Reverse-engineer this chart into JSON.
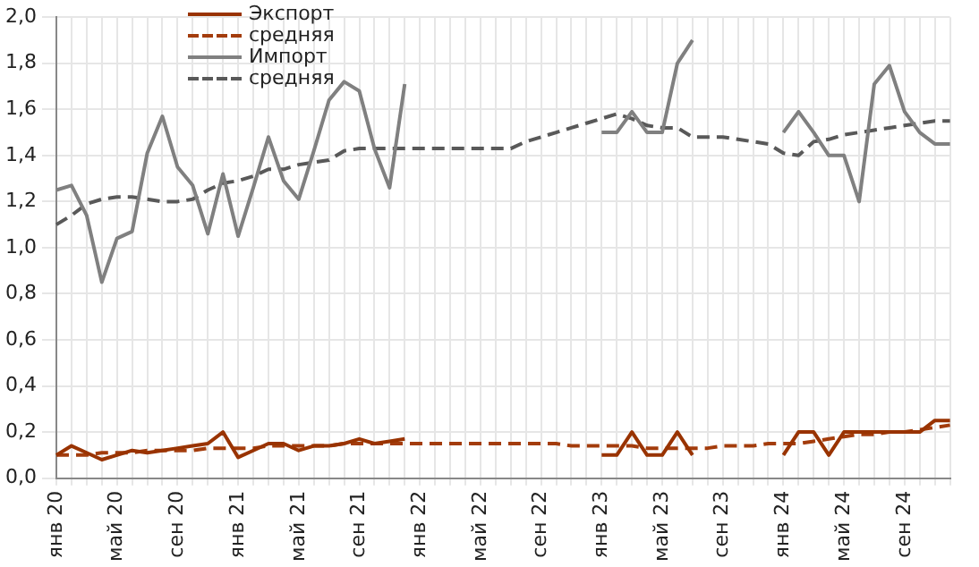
{
  "chart_data": {
    "type": "line",
    "categories": [
      "янв 20",
      null,
      null,
      null,
      "май 20",
      null,
      null,
      null,
      "сен 20",
      null,
      null,
      null,
      "янв 21",
      null,
      null,
      null,
      "май 21",
      null,
      null,
      null,
      "сен 21",
      null,
      null,
      null,
      "янв 22",
      null,
      null,
      null,
      "май 22",
      null,
      null,
      null,
      "сен 22",
      null,
      null,
      null,
      "янв 23",
      null,
      null,
      null,
      "май 23",
      null,
      null,
      null,
      "сен 23",
      null,
      null,
      null,
      "янв 24",
      null,
      null,
      null,
      "май 24",
      null,
      null,
      null,
      "сен 24",
      null,
      null,
      null
    ],
    "series": [
      {
        "name": "Экспорт",
        "color": "#993300",
        "line_style": "solid",
        "values": [
          0.1,
          0.14,
          0.11,
          0.08,
          0.1,
          0.12,
          0.11,
          0.12,
          0.13,
          0.14,
          0.15,
          0.2,
          0.09,
          0.12,
          0.15,
          0.15,
          0.12,
          0.14,
          0.14,
          0.15,
          0.17,
          0.15,
          0.16,
          0.17,
          null,
          null,
          null,
          null,
          null,
          null,
          null,
          null,
          null,
          null,
          null,
          null,
          0.1,
          0.1,
          0.2,
          0.1,
          0.1,
          0.2,
          0.1,
          null,
          null,
          null,
          null,
          null,
          0.1,
          0.2,
          0.2,
          0.1,
          0.2,
          0.2,
          0.2,
          0.2,
          0.2,
          0.2,
          0.25,
          0.25
        ]
      },
      {
        "name": "средняя",
        "color": "#a33c0c",
        "line_style": "dashed",
        "values": [
          0.1,
          0.1,
          0.1,
          0.11,
          0.11,
          0.11,
          0.12,
          0.12,
          0.12,
          0.12,
          0.13,
          0.13,
          0.13,
          0.13,
          0.14,
          0.14,
          0.14,
          0.14,
          0.14,
          0.15,
          0.15,
          0.15,
          0.15,
          0.15,
          0.15,
          0.15,
          0.15,
          0.15,
          0.15,
          0.15,
          0.15,
          0.15,
          0.15,
          0.15,
          0.14,
          0.14,
          0.14,
          0.14,
          0.14,
          0.13,
          0.13,
          0.13,
          0.13,
          0.13,
          0.14,
          0.14,
          0.14,
          0.15,
          0.15,
          0.15,
          0.16,
          0.17,
          0.18,
          0.19,
          0.19,
          0.2,
          0.2,
          0.21,
          0.22,
          0.23
        ]
      },
      {
        "name": "Импорт",
        "color": "#808080",
        "line_style": "solid",
        "values": [
          1.25,
          1.27,
          1.14,
          0.85,
          1.04,
          1.07,
          1.41,
          1.57,
          1.35,
          1.27,
          1.06,
          1.32,
          1.05,
          1.26,
          1.48,
          1.29,
          1.21,
          1.42,
          1.64,
          1.72,
          1.68,
          1.43,
          1.26,
          1.71,
          null,
          null,
          null,
          null,
          null,
          null,
          null,
          null,
          null,
          null,
          null,
          null,
          1.5,
          1.5,
          1.59,
          1.5,
          1.5,
          1.8,
          1.9,
          null,
          null,
          null,
          null,
          null,
          1.5,
          1.59,
          1.5,
          1.4,
          1.4,
          1.2,
          1.71,
          1.79,
          1.59,
          1.5,
          1.45,
          1.45
        ]
      },
      {
        "name": "средняя",
        "color": "#595959",
        "line_style": "dashed",
        "values": [
          1.1,
          1.14,
          1.19,
          1.21,
          1.22,
          1.22,
          1.21,
          1.2,
          1.2,
          1.21,
          1.25,
          1.28,
          1.29,
          1.31,
          1.34,
          1.34,
          1.36,
          1.37,
          1.38,
          1.42,
          1.43,
          1.43,
          1.43,
          1.43,
          1.43,
          1.43,
          1.43,
          1.43,
          1.43,
          1.43,
          1.43,
          1.46,
          1.48,
          1.5,
          1.52,
          1.54,
          1.56,
          1.58,
          1.56,
          1.53,
          1.52,
          1.52,
          1.48,
          1.48,
          1.48,
          1.47,
          1.46,
          1.45,
          1.41,
          1.4,
          1.46,
          1.47,
          1.49,
          1.5,
          1.51,
          1.52,
          1.53,
          1.54,
          1.55,
          1.55
        ]
      }
    ],
    "ylim": [
      0,
      2
    ],
    "yticks": [
      {
        "value": 0,
        "label": "0,0"
      },
      {
        "value": 0.2,
        "label": "0,2"
      },
      {
        "value": 0.4,
        "label": "0,4"
      },
      {
        "value": 0.6,
        "label": "0,6"
      },
      {
        "value": 0.8,
        "label": "0,8"
      },
      {
        "value": 1,
        "label": "1,0"
      },
      {
        "value": 1.2,
        "label": "1,2"
      },
      {
        "value": 1.4,
        "label": "1,4"
      },
      {
        "value": 1.6,
        "label": "1,6"
      },
      {
        "value": 1.8,
        "label": "1,8"
      },
      {
        "value": 2,
        "label": "2,0"
      }
    ],
    "grid": true,
    "legend": "top",
    "marker": "none"
  }
}
